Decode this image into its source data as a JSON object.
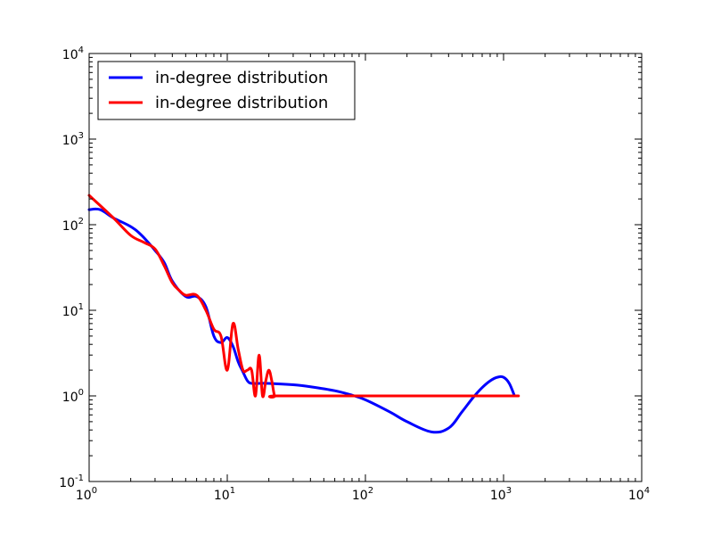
{
  "chart_data": {
    "type": "line",
    "title": "",
    "xlabel": "",
    "ylabel": "",
    "xscale": "log",
    "yscale": "log",
    "xlim": [
      1,
      10000
    ],
    "ylim": [
      0.1,
      10000
    ],
    "x_ticks": [
      {
        "value": 1,
        "base": "10",
        "exp": "0"
      },
      {
        "value": 10,
        "base": "10",
        "exp": "1"
      },
      {
        "value": 100,
        "base": "10",
        "exp": "2"
      },
      {
        "value": 1000,
        "base": "10",
        "exp": "3"
      },
      {
        "value": 10000,
        "base": "10",
        "exp": "4"
      }
    ],
    "y_ticks": [
      {
        "value": 0.1,
        "base": "10",
        "exp": "-1"
      },
      {
        "value": 1,
        "base": "10",
        "exp": "0"
      },
      {
        "value": 10,
        "base": "10",
        "exp": "1"
      },
      {
        "value": 100,
        "base": "10",
        "exp": "2"
      },
      {
        "value": 1000,
        "base": "10",
        "exp": "3"
      },
      {
        "value": 10000,
        "base": "10",
        "exp": "4"
      }
    ],
    "grid": false,
    "legend_position": "top-left",
    "series": [
      {
        "name": "in-degree distribution",
        "color": "#0000ff",
        "x": [
          1,
          1.2,
          1.5,
          2,
          2.4,
          3,
          3.5,
          4,
          5,
          6,
          7,
          8,
          9,
          10,
          11,
          12,
          13,
          14,
          15,
          17,
          20,
          30,
          40,
          60,
          80,
          100,
          150,
          200,
          300,
          400,
          500,
          600,
          700,
          800,
          900,
          1000,
          1100,
          1200
        ],
        "y": [
          150,
          150,
          120,
          95,
          75,
          50,
          36,
          22,
          14.5,
          14.5,
          11,
          5,
          4.2,
          4.8,
          3.8,
          2.5,
          1.9,
          1.5,
          1.4,
          1.4,
          1.4,
          1.35,
          1.28,
          1.15,
          1.02,
          0.9,
          0.65,
          0.5,
          0.38,
          0.42,
          0.65,
          0.95,
          1.25,
          1.5,
          1.65,
          1.65,
          1.4,
          1.0
        ]
      },
      {
        "name": "in-degree distribution",
        "color": "#ff0000",
        "x": [
          1,
          1.5,
          2,
          2.5,
          3,
          3.5,
          4,
          4.5,
          5,
          6,
          7,
          8,
          9,
          10,
          11,
          12,
          13,
          14,
          15,
          16,
          17,
          18,
          19,
          20,
          21,
          22,
          23,
          100,
          1000,
          1200
        ],
        "y": [
          220,
          120,
          75,
          62,
          52,
          33,
          21,
          17,
          15,
          15,
          10,
          6,
          5,
          2,
          7,
          3.5,
          2,
          2,
          2,
          1,
          3,
          1,
          1.5,
          2,
          1.5,
          1,
          1,
          1,
          1,
          1
        ]
      }
    ]
  }
}
